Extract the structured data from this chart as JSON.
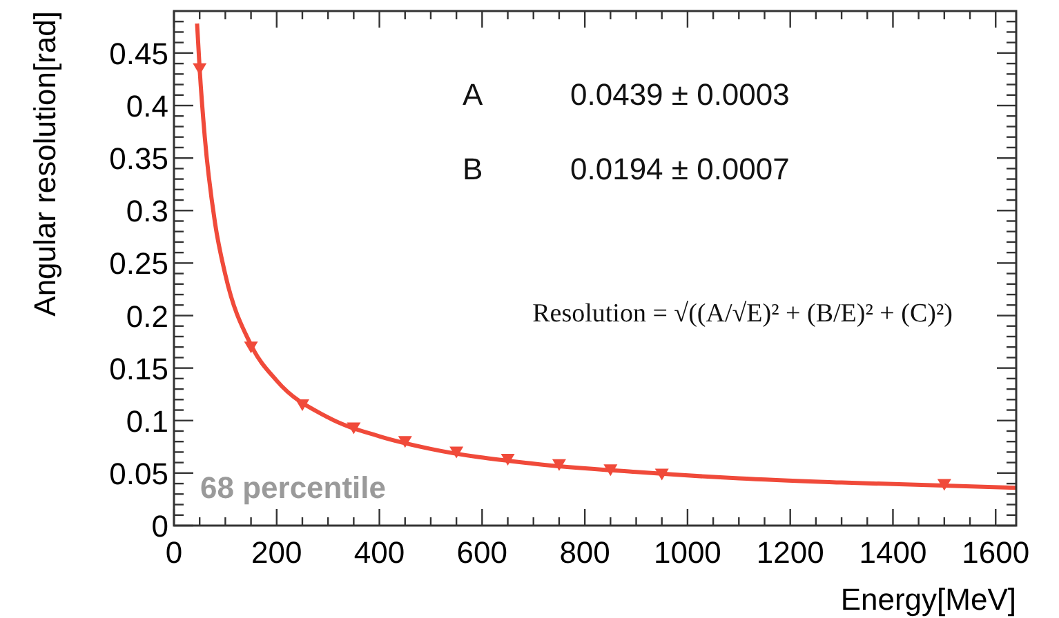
{
  "chart_data": {
    "type": "scatter",
    "xlabel": "Energy[MeV]",
    "ylabel": "Angular resolution[rad]",
    "xlim": [
      0,
      1640
    ],
    "ylim": [
      0,
      0.49
    ],
    "xticks": [
      0,
      {
        "value": 50,
        "label": null
      },
      {
        "value": 100,
        "label": null
      },
      {
        "value": 150,
        "label": null
      },
      200,
      {
        "value": 250,
        "label": null
      },
      {
        "value": 300,
        "label": null
      },
      {
        "value": 350,
        "label": null
      },
      400,
      {
        "value": 450,
        "label": null
      },
      {
        "value": 500,
        "label": null
      },
      {
        "value": 550,
        "label": null
      },
      600,
      {
        "value": 650,
        "label": null
      },
      {
        "value": 700,
        "label": null
      },
      {
        "value": 750,
        "label": null
      },
      800,
      {
        "value": 850,
        "label": null
      },
      {
        "value": 900,
        "label": null
      },
      {
        "value": 950,
        "label": null
      },
      1000,
      {
        "value": 1050,
        "label": null
      },
      {
        "value": 1100,
        "label": null
      },
      {
        "value": 1150,
        "label": null
      },
      1200,
      {
        "value": 1250,
        "label": null
      },
      {
        "value": 1300,
        "label": null
      },
      {
        "value": 1350,
        "label": null
      },
      1400,
      {
        "value": 1450,
        "label": null
      },
      {
        "value": 1500,
        "label": null
      },
      {
        "value": 1550,
        "label": null
      },
      1600
    ],
    "yticks": [
      0,
      {
        "value": 0.01,
        "label": null
      },
      {
        "value": 0.02,
        "label": null
      },
      {
        "value": 0.03,
        "label": null
      },
      {
        "value": 0.04,
        "label": null
      },
      0.05,
      {
        "value": 0.06,
        "label": null
      },
      {
        "value": 0.07,
        "label": null
      },
      {
        "value": 0.08,
        "label": null
      },
      {
        "value": 0.09,
        "label": null
      },
      0.1,
      {
        "value": 0.11,
        "label": null
      },
      {
        "value": 0.12,
        "label": null
      },
      {
        "value": 0.13,
        "label": null
      },
      {
        "value": 0.14,
        "label": null
      },
      0.15,
      {
        "value": 0.16,
        "label": null
      },
      {
        "value": 0.17,
        "label": null
      },
      {
        "value": 0.18,
        "label": null
      },
      {
        "value": 0.19,
        "label": null
      },
      0.2,
      {
        "value": 0.21,
        "label": null
      },
      {
        "value": 0.22,
        "label": null
      },
      {
        "value": 0.23,
        "label": null
      },
      {
        "value": 0.24,
        "label": null
      },
      0.25,
      {
        "value": 0.26,
        "label": null
      },
      {
        "value": 0.27,
        "label": null
      },
      {
        "value": 0.28,
        "label": null
      },
      {
        "value": 0.29,
        "label": null
      },
      0.3,
      {
        "value": 0.31,
        "label": null
      },
      {
        "value": 0.32,
        "label": null
      },
      {
        "value": 0.33,
        "label": null
      },
      {
        "value": 0.34,
        "label": null
      },
      0.35,
      {
        "value": 0.36,
        "label": null
      },
      {
        "value": 0.37,
        "label": null
      },
      {
        "value": 0.38,
        "label": null
      },
      {
        "value": 0.39,
        "label": null
      },
      0.4,
      {
        "value": 0.41,
        "label": null
      },
      {
        "value": 0.42,
        "label": null
      },
      {
        "value": 0.43,
        "label": null
      },
      {
        "value": 0.44,
        "label": null
      },
      0.45,
      {
        "value": 0.46,
        "label": null
      },
      {
        "value": 0.47,
        "label": null
      },
      {
        "value": 0.48,
        "label": null
      }
    ],
    "grid": false,
    "series": [
      {
        "type": "line",
        "color": "#f04a3a",
        "marker": "none",
        "line_style": "solid",
        "x": [
          45,
          50,
          60,
          80,
          100,
          150,
          200,
          300,
          400,
          500,
          700,
          900,
          1100,
          1300,
          1640
        ],
        "values": [
          0.478,
          0.435,
          0.37,
          0.288,
          0.239,
          0.172,
          0.138,
          0.103,
          0.085,
          0.073,
          0.059,
          0.051,
          0.045,
          0.041,
          0.036
        ]
      },
      {
        "color": "#f04a3a",
        "marker": "triangle",
        "x": [
          50,
          150,
          250,
          350,
          450,
          550,
          650,
          750,
          850,
          950,
          1500
        ],
        "values": [
          0.435,
          0.17,
          0.115,
          0.093,
          0.08,
          0.07,
          0.063,
          0.058,
          0.053,
          0.049,
          0.039
        ]
      }
    ],
    "annotations": [
      "A",
      "0.0439 ± 0.0003",
      "B",
      "0.0194 ± 0.0007",
      "Resolution = √((A/√E)² + (B/E)² + (C)²)",
      "68 percentile"
    ]
  }
}
